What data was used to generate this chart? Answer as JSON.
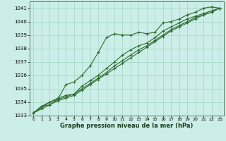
{
  "xlabel": "Graphe pression niveau de la mer (hPa)",
  "xlim": [
    -0.5,
    23.5
  ],
  "ylim": [
    1033,
    1041.5
  ],
  "yticks": [
    1033,
    1034,
    1035,
    1036,
    1037,
    1038,
    1039,
    1040,
    1041
  ],
  "xticks": [
    0,
    1,
    2,
    3,
    4,
    5,
    6,
    7,
    8,
    9,
    10,
    11,
    12,
    13,
    14,
    15,
    16,
    17,
    18,
    19,
    20,
    21,
    22,
    23
  ],
  "bg_color": "#cceee8",
  "grid_color": "#aaddcc",
  "line_color": "#2d6a2d",
  "series": [
    [
      1033.2,
      1033.7,
      1033.8,
      1034.2,
      1035.3,
      1035.5,
      1036.0,
      1036.7,
      1037.7,
      1038.8,
      1039.1,
      1039.0,
      1039.0,
      1039.2,
      1039.1,
      1039.2,
      1039.9,
      1040.0,
      1040.2,
      1040.5,
      1040.7,
      1041.0,
      1041.1,
      1041.0
    ],
    [
      1033.2,
      1033.7,
      1034.0,
      1034.3,
      1034.5,
      1034.6,
      1035.2,
      1035.6,
      1036.0,
      1036.5,
      1037.0,
      1037.5,
      1037.9,
      1038.2,
      1038.4,
      1038.8,
      1039.3,
      1039.6,
      1039.9,
      1040.2,
      1040.4,
      1040.6,
      1040.8,
      1041.0
    ],
    [
      1033.2,
      1033.6,
      1034.0,
      1034.2,
      1034.4,
      1034.6,
      1035.0,
      1035.4,
      1035.8,
      1036.2,
      1036.7,
      1037.1,
      1037.5,
      1037.9,
      1038.2,
      1038.6,
      1039.0,
      1039.4,
      1039.7,
      1040.0,
      1040.3,
      1040.5,
      1040.7,
      1041.0
    ],
    [
      1033.2,
      1033.5,
      1033.8,
      1034.1,
      1034.3,
      1034.5,
      1034.9,
      1035.3,
      1035.7,
      1036.1,
      1036.5,
      1036.9,
      1037.3,
      1037.7,
      1038.1,
      1038.5,
      1038.9,
      1039.3,
      1039.6,
      1039.9,
      1040.2,
      1040.5,
      1040.7,
      1041.0
    ]
  ]
}
